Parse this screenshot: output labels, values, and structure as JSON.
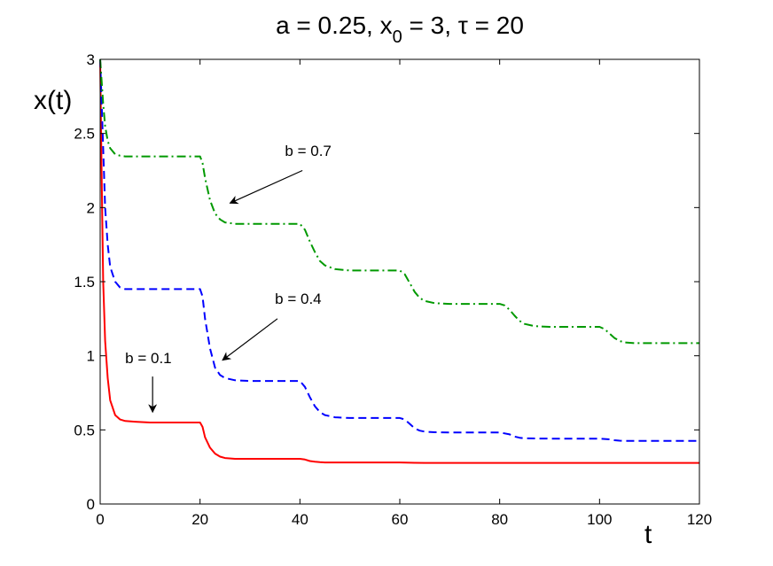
{
  "chart_data": {
    "type": "line",
    "title": {
      "prefix": "a = 0.25, x",
      "sub": "0",
      "suffix": " = 3, τ = 20"
    },
    "xlabel": "t",
    "ylabel": "x(t)",
    "xlim": [
      0,
      120
    ],
    "ylim": [
      0,
      3
    ],
    "xticks": [
      0,
      20,
      40,
      60,
      80,
      100,
      120
    ],
    "yticks": [
      0,
      0.5,
      1,
      1.5,
      2,
      2.5,
      3
    ],
    "ytick_labels": [
      "0",
      "0.5",
      "1",
      "1.5",
      "2",
      "2.5",
      "3"
    ],
    "grid": false,
    "series": [
      {
        "name": "b = 0.1",
        "color": "#ff0000",
        "style": "solid",
        "x": [
          0,
          0.3,
          0.6,
          1,
          1.5,
          2,
          3,
          4,
          5,
          7,
          10,
          15,
          20,
          20.5,
          21,
          22,
          23,
          24,
          25,
          27,
          30,
          35,
          40,
          41,
          42,
          43,
          44,
          45,
          50,
          55,
          60,
          61,
          63,
          65,
          70,
          80,
          90,
          100,
          110,
          120
        ],
        "y": [
          3,
          2.2,
          1.5,
          1.1,
          0.85,
          0.7,
          0.6,
          0.57,
          0.56,
          0.555,
          0.55,
          0.55,
          0.55,
          0.52,
          0.45,
          0.38,
          0.34,
          0.32,
          0.31,
          0.305,
          0.305,
          0.305,
          0.305,
          0.3,
          0.29,
          0.285,
          0.282,
          0.28,
          0.28,
          0.28,
          0.28,
          0.279,
          0.278,
          0.277,
          0.277,
          0.277,
          0.277,
          0.277,
          0.277,
          0.277
        ]
      },
      {
        "name": "b = 0.4",
        "color": "#0000ff",
        "style": "dashed",
        "x": [
          0,
          0.3,
          0.6,
          1,
          1.5,
          2,
          3,
          4,
          5,
          7,
          10,
          15,
          20,
          20.5,
          21,
          22,
          23,
          24,
          25,
          27,
          30,
          35,
          40,
          41,
          42,
          43,
          44,
          45,
          47,
          50,
          55,
          60,
          61,
          62,
          63,
          64,
          65,
          67,
          70,
          75,
          80,
          82,
          83,
          84,
          85,
          87,
          90,
          95,
          100,
          102,
          103,
          104,
          105,
          107,
          110,
          115,
          120
        ],
        "y": [
          3,
          2.7,
          2.4,
          2.0,
          1.75,
          1.6,
          1.5,
          1.46,
          1.45,
          1.45,
          1.45,
          1.45,
          1.45,
          1.4,
          1.25,
          1.05,
          0.92,
          0.87,
          0.85,
          0.835,
          0.83,
          0.83,
          0.83,
          0.79,
          0.72,
          0.66,
          0.62,
          0.6,
          0.585,
          0.58,
          0.58,
          0.58,
          0.57,
          0.54,
          0.51,
          0.495,
          0.488,
          0.484,
          0.483,
          0.483,
          0.483,
          0.47,
          0.455,
          0.447,
          0.443,
          0.442,
          0.441,
          0.441,
          0.441,
          0.436,
          0.43,
          0.427,
          0.426,
          0.426,
          0.426,
          0.426,
          0.426
        ]
      },
      {
        "name": "b = 0.7",
        "color": "#009900",
        "style": "dashdot",
        "x": [
          0,
          0.3,
          0.6,
          1,
          1.5,
          2,
          3,
          4,
          5,
          7,
          10,
          15,
          20,
          20.5,
          21,
          22,
          23,
          24,
          25,
          27,
          30,
          35,
          40,
          41,
          42,
          43,
          44,
          45,
          47,
          50,
          55,
          60,
          61,
          62,
          63,
          64,
          65,
          67,
          70,
          75,
          80,
          81,
          82,
          83,
          84,
          85,
          87,
          90,
          95,
          100,
          101,
          102,
          103,
          104,
          105,
          107,
          110,
          115,
          120
        ],
        "y": [
          3,
          2.85,
          2.7,
          2.55,
          2.45,
          2.4,
          2.36,
          2.35,
          2.345,
          2.345,
          2.345,
          2.345,
          2.345,
          2.3,
          2.2,
          2.05,
          1.96,
          1.92,
          1.9,
          1.89,
          1.89,
          1.89,
          1.89,
          1.85,
          1.77,
          1.7,
          1.64,
          1.61,
          1.585,
          1.575,
          1.575,
          1.575,
          1.55,
          1.49,
          1.43,
          1.39,
          1.37,
          1.355,
          1.35,
          1.35,
          1.35,
          1.34,
          1.31,
          1.27,
          1.235,
          1.215,
          1.2,
          1.195,
          1.195,
          1.195,
          1.18,
          1.15,
          1.12,
          1.1,
          1.09,
          1.085,
          1.085,
          1.085,
          1.085
        ]
      }
    ],
    "annotations": [
      {
        "text": "b = 0.7",
        "label_x": 37,
        "label_y": 2.35,
        "tail_x": 40.5,
        "tail_y": 2.25,
        "head_x": 26,
        "head_y": 2.03
      },
      {
        "text": "b = 0.4",
        "label_x": 35,
        "label_y": 1.35,
        "tail_x": 35.5,
        "tail_y": 1.25,
        "head_x": 24.5,
        "head_y": 0.97
      },
      {
        "text": "b = 0.1",
        "label_x": 5,
        "label_y": 0.95,
        "tail_x": 10.5,
        "tail_y": 0.86,
        "head_x": 10.5,
        "head_y": 0.62
      }
    ]
  }
}
